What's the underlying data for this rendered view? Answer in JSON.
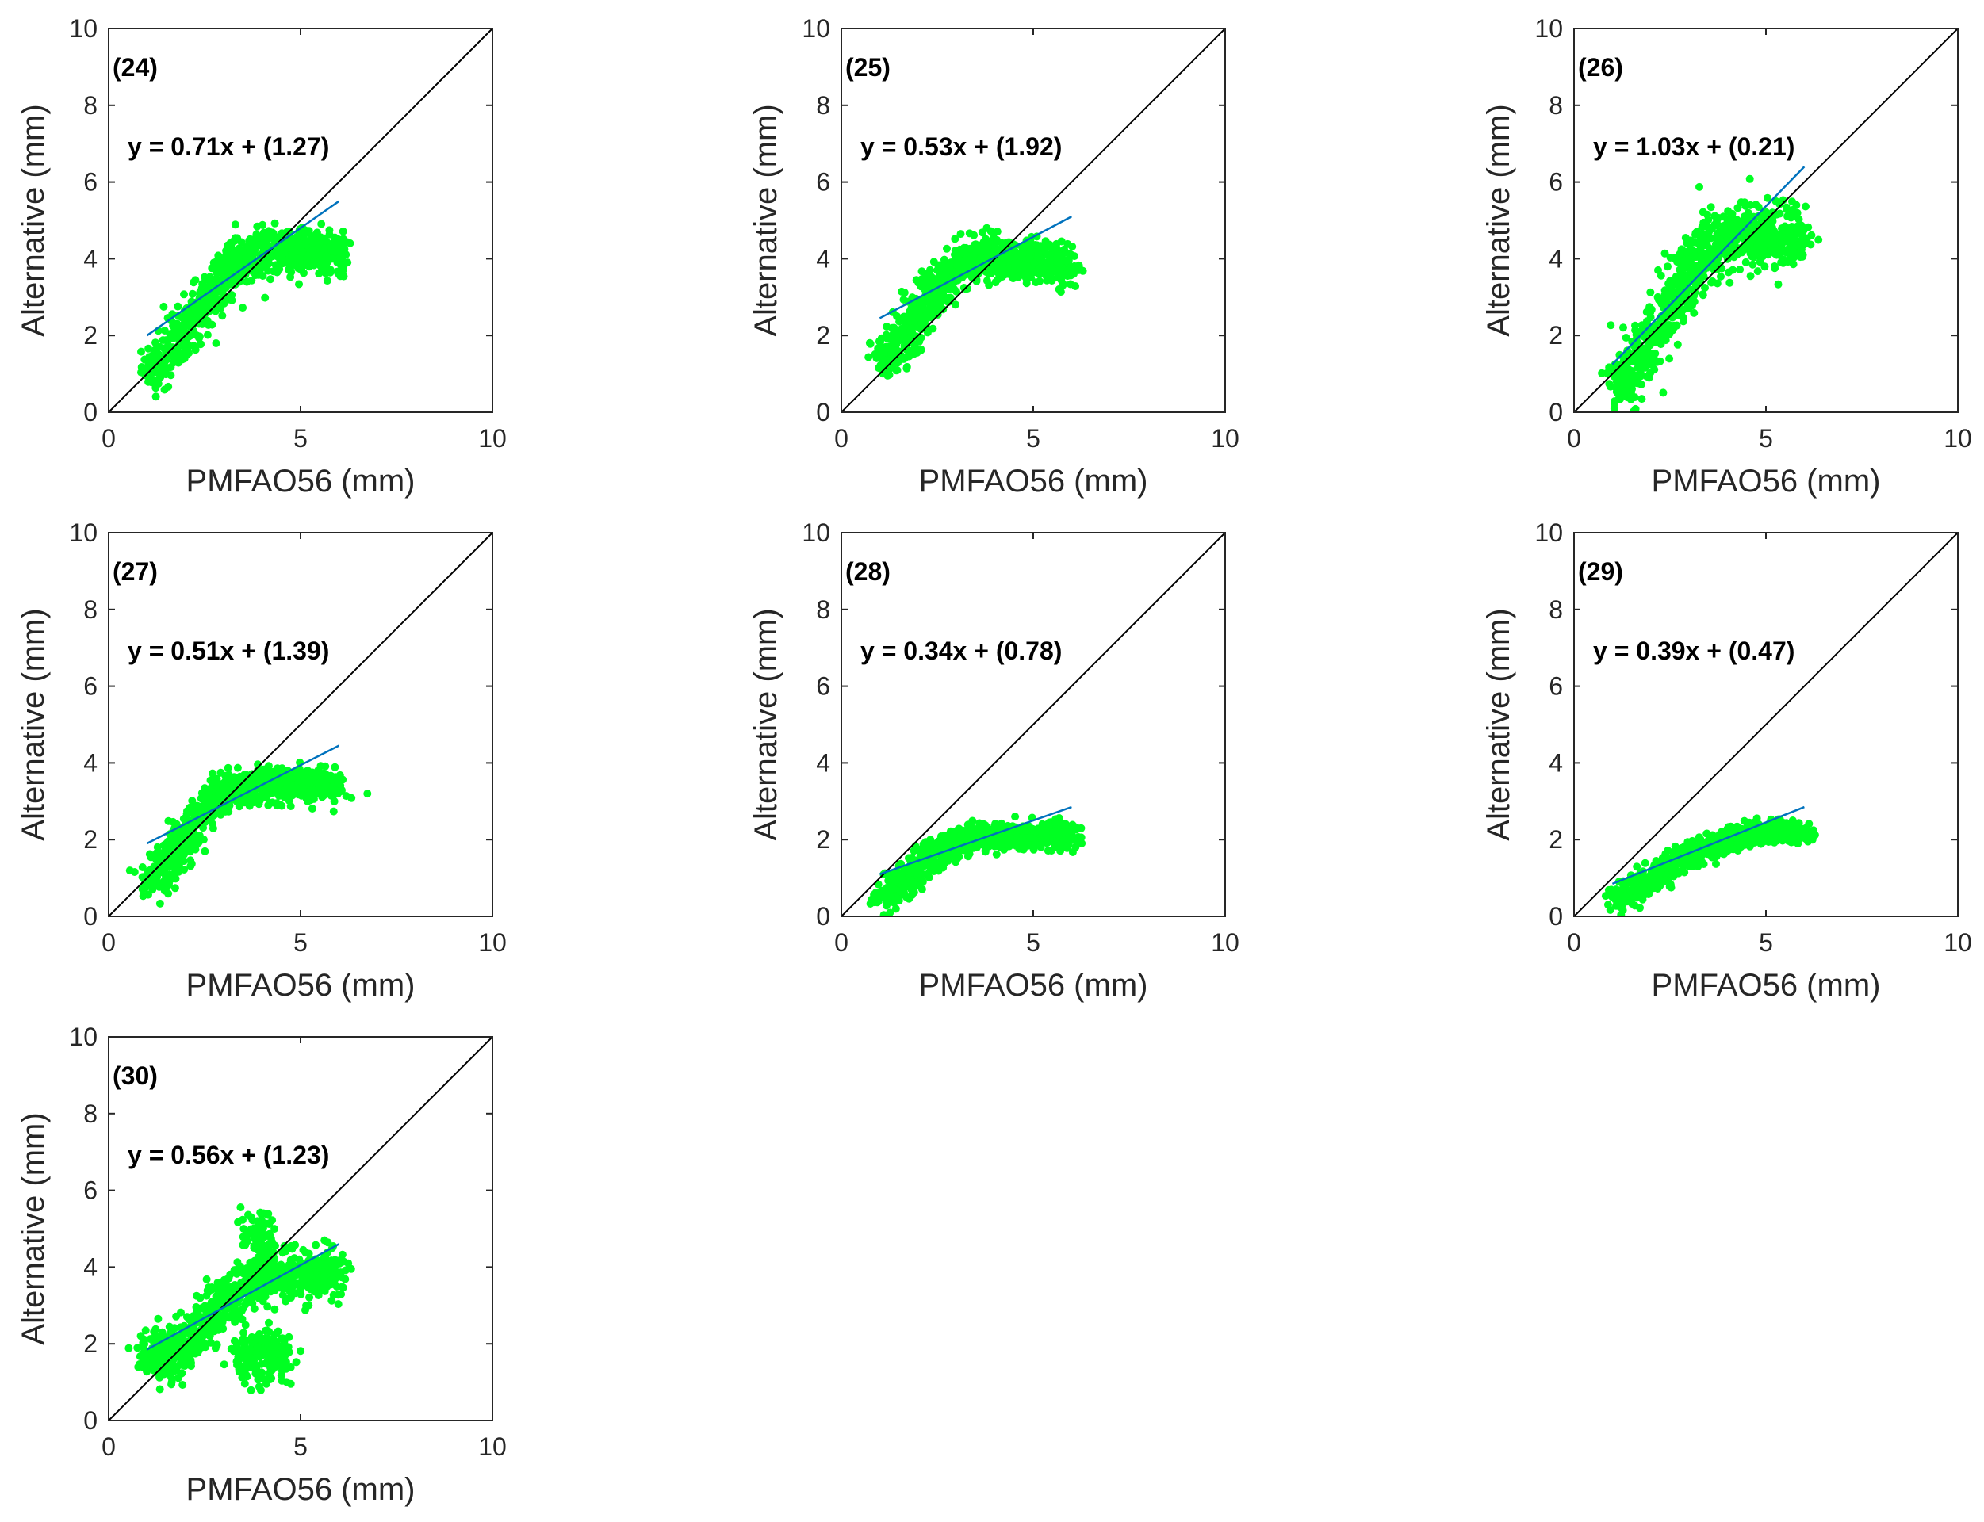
{
  "figure": {
    "description_hidden": false
  },
  "colors": {
    "scatter": "#00ff22",
    "fit_line": "#0072bd",
    "identity_line": "#000000",
    "axes": "#262626"
  },
  "chart_data": [
    {
      "type": "scatter",
      "panel": "(24)",
      "equation": "y = 0.71x + (1.27)",
      "slope": 0.71,
      "intercept": 1.27,
      "fit_line": {
        "x": [
          1,
          6
        ],
        "y": [
          2.0,
          5.5
        ]
      },
      "xlabel": "PMFAO56 (mm)",
      "ylabel": "Alternative (mm)",
      "xlim": [
        0,
        10
      ],
      "ylim": [
        0,
        10
      ],
      "xticks": [
        "0",
        "5",
        "10"
      ],
      "yticks": [
        "0",
        "2",
        "4",
        "6",
        "8",
        "10"
      ],
      "identity_line": true,
      "cloud": [
        {
          "x": 1.3,
          "y": 1.2
        },
        {
          "x": 1.8,
          "y": 1.8
        },
        {
          "x": 2.2,
          "y": 2.4
        },
        {
          "x": 2.6,
          "y": 3.0
        },
        {
          "x": 3.0,
          "y": 3.5
        },
        {
          "x": 3.4,
          "y": 3.9
        },
        {
          "x": 3.8,
          "y": 4.1
        },
        {
          "x": 4.2,
          "y": 4.2
        },
        {
          "x": 4.6,
          "y": 4.2
        },
        {
          "x": 5.0,
          "y": 4.2
        },
        {
          "x": 5.4,
          "y": 4.2
        },
        {
          "x": 5.8,
          "y": 4.1
        }
      ],
      "spread": 0.55
    },
    {
      "type": "scatter",
      "panel": "(25)",
      "equation": "y = 0.53x + (1.92)",
      "slope": 0.53,
      "intercept": 1.92,
      "fit_line": {
        "x": [
          1,
          6
        ],
        "y": [
          2.45,
          5.1
        ]
      },
      "xlabel": "PMFAO56 (mm)",
      "ylabel": "Alternative (mm)",
      "xlim": [
        0,
        10
      ],
      "ylim": [
        0,
        10
      ],
      "xticks": [
        "0",
        "5",
        "10"
      ],
      "yticks": [
        "0",
        "2",
        "4",
        "6",
        "8",
        "10"
      ],
      "identity_line": true,
      "cloud": [
        {
          "x": 1.2,
          "y": 1.4
        },
        {
          "x": 1.6,
          "y": 1.9
        },
        {
          "x": 2.0,
          "y": 2.5
        },
        {
          "x": 2.4,
          "y": 3.1
        },
        {
          "x": 2.8,
          "y": 3.6
        },
        {
          "x": 3.2,
          "y": 3.9
        },
        {
          "x": 3.6,
          "y": 4.0
        },
        {
          "x": 4.0,
          "y": 4.0
        },
        {
          "x": 4.4,
          "y": 4.0
        },
        {
          "x": 4.8,
          "y": 4.0
        },
        {
          "x": 5.3,
          "y": 3.9
        },
        {
          "x": 5.8,
          "y": 3.8
        }
      ],
      "spread": 0.5
    },
    {
      "type": "scatter",
      "panel": "(26)",
      "equation": "y = 1.03x + (0.21)",
      "slope": 1.03,
      "intercept": 0.21,
      "fit_line": {
        "x": [
          1,
          6
        ],
        "y": [
          1.25,
          6.4
        ]
      },
      "xlabel": "PMFAO56 (mm)",
      "ylabel": "Alternative (mm)",
      "xlim": [
        0,
        10
      ],
      "ylim": [
        0,
        10
      ],
      "xticks": [
        "0",
        "5",
        "10"
      ],
      "yticks": [
        "0",
        "2",
        "4",
        "6",
        "8",
        "10"
      ],
      "identity_line": true,
      "cloud": [
        {
          "x": 1.3,
          "y": 0.8
        },
        {
          "x": 1.7,
          "y": 1.4
        },
        {
          "x": 2.1,
          "y": 2.1
        },
        {
          "x": 2.5,
          "y": 2.8
        },
        {
          "x": 2.9,
          "y": 3.5
        },
        {
          "x": 3.3,
          "y": 4.0
        },
        {
          "x": 3.7,
          "y": 4.4
        },
        {
          "x": 4.1,
          "y": 4.6
        },
        {
          "x": 4.5,
          "y": 4.6
        },
        {
          "x": 4.9,
          "y": 4.6
        },
        {
          "x": 5.3,
          "y": 4.6
        },
        {
          "x": 5.8,
          "y": 4.6
        }
      ],
      "spread": 0.75
    },
    {
      "type": "scatter",
      "panel": "(27)",
      "equation": "y = 0.51x + (1.39)",
      "slope": 0.51,
      "intercept": 1.39,
      "fit_line": {
        "x": [
          1,
          6
        ],
        "y": [
          1.9,
          4.45
        ]
      },
      "xlabel": "PMFAO56 (mm)",
      "ylabel": "Alternative (mm)",
      "xlim": [
        0,
        10
      ],
      "ylim": [
        0,
        10
      ],
      "xticks": [
        "0",
        "5",
        "10"
      ],
      "yticks": [
        "0",
        "2",
        "4",
        "6",
        "8",
        "10"
      ],
      "identity_line": true,
      "cloud": [
        {
          "x": 1.2,
          "y": 1.0
        },
        {
          "x": 1.6,
          "y": 1.5
        },
        {
          "x": 2.0,
          "y": 2.0
        },
        {
          "x": 2.4,
          "y": 2.6
        },
        {
          "x": 2.8,
          "y": 3.0
        },
        {
          "x": 3.2,
          "y": 3.3
        },
        {
          "x": 3.6,
          "y": 3.4
        },
        {
          "x": 4.0,
          "y": 3.4
        },
        {
          "x": 4.4,
          "y": 3.4
        },
        {
          "x": 4.8,
          "y": 3.4
        },
        {
          "x": 5.3,
          "y": 3.4
        },
        {
          "x": 5.8,
          "y": 3.4
        }
      ],
      "spread": 0.4
    },
    {
      "type": "scatter",
      "panel": "(28)",
      "equation": "y = 0.34x + (0.78)",
      "slope": 0.34,
      "intercept": 0.78,
      "fit_line": {
        "x": [
          1,
          6
        ],
        "y": [
          1.1,
          2.85
        ]
      },
      "xlabel": "PMFAO56 (mm)",
      "ylabel": "Alternative (mm)",
      "xlim": [
        0,
        10
      ],
      "ylim": [
        0,
        10
      ],
      "xticks": [
        "0",
        "5",
        "10"
      ],
      "yticks": [
        "0",
        "2",
        "4",
        "6",
        "8",
        "10"
      ],
      "identity_line": true,
      "cloud": [
        {
          "x": 1.2,
          "y": 0.5
        },
        {
          "x": 1.6,
          "y": 0.9
        },
        {
          "x": 2.0,
          "y": 1.3
        },
        {
          "x": 2.4,
          "y": 1.6
        },
        {
          "x": 2.8,
          "y": 1.8
        },
        {
          "x": 3.2,
          "y": 2.0
        },
        {
          "x": 3.6,
          "y": 2.1
        },
        {
          "x": 4.0,
          "y": 2.1
        },
        {
          "x": 4.4,
          "y": 2.1
        },
        {
          "x": 4.8,
          "y": 2.1
        },
        {
          "x": 5.3,
          "y": 2.1
        },
        {
          "x": 5.8,
          "y": 2.1
        }
      ],
      "spread": 0.3
    },
    {
      "type": "scatter",
      "panel": "(29)",
      "equation": "y = 0.39x + (0.47)",
      "slope": 0.39,
      "intercept": 0.47,
      "fit_line": {
        "x": [
          1,
          6
        ],
        "y": [
          0.85,
          2.85
        ]
      },
      "xlabel": "PMFAO56 (mm)",
      "ylabel": "Alternative (mm)",
      "xlim": [
        0,
        10
      ],
      "ylim": [
        0,
        10
      ],
      "xticks": [
        "0",
        "5",
        "10"
      ],
      "yticks": [
        "0",
        "2",
        "4",
        "6",
        "8",
        "10"
      ],
      "identity_line": true,
      "cloud": [
        {
          "x": 1.3,
          "y": 0.5
        },
        {
          "x": 1.7,
          "y": 0.8
        },
        {
          "x": 2.1,
          "y": 1.0
        },
        {
          "x": 2.5,
          "y": 1.3
        },
        {
          "x": 2.9,
          "y": 1.5
        },
        {
          "x": 3.3,
          "y": 1.7
        },
        {
          "x": 3.7,
          "y": 1.9
        },
        {
          "x": 4.1,
          "y": 2.0
        },
        {
          "x": 4.5,
          "y": 2.1
        },
        {
          "x": 4.9,
          "y": 2.2
        },
        {
          "x": 5.3,
          "y": 2.2
        },
        {
          "x": 5.8,
          "y": 2.2
        }
      ],
      "spread": 0.25
    },
    {
      "type": "scatter",
      "panel": "(30)",
      "equation": "y = 0.56x + (1.23)",
      "slope": 0.56,
      "intercept": 1.23,
      "fit_line": {
        "x": [
          1,
          6
        ],
        "y": [
          1.85,
          4.6
        ]
      },
      "xlabel": "PMFAO56 (mm)",
      "ylabel": "Alternative (mm)",
      "xlim": [
        0,
        10
      ],
      "ylim": [
        0,
        10
      ],
      "xticks": [
        "0",
        "5",
        "10"
      ],
      "yticks": [
        "0",
        "2",
        "4",
        "6",
        "8",
        "10"
      ],
      "identity_line": true,
      "cloud": [
        {
          "x": 1.2,
          "y": 1.8
        },
        {
          "x": 1.6,
          "y": 1.6
        },
        {
          "x": 2.0,
          "y": 1.9
        },
        {
          "x": 2.4,
          "y": 2.4
        },
        {
          "x": 2.8,
          "y": 2.9
        },
        {
          "x": 3.2,
          "y": 3.3
        },
        {
          "x": 3.6,
          "y": 3.6
        },
        {
          "x": 4.0,
          "y": 3.8
        },
        {
          "x": 4.4,
          "y": 3.8
        },
        {
          "x": 4.8,
          "y": 3.8
        },
        {
          "x": 5.3,
          "y": 3.8
        },
        {
          "x": 5.8,
          "y": 3.8
        },
        {
          "x": 3.6,
          "y": 1.7
        },
        {
          "x": 4.0,
          "y": 1.7
        },
        {
          "x": 4.4,
          "y": 1.7
        },
        {
          "x": 3.9,
          "y": 4.8
        }
      ],
      "spread": 0.6
    }
  ]
}
